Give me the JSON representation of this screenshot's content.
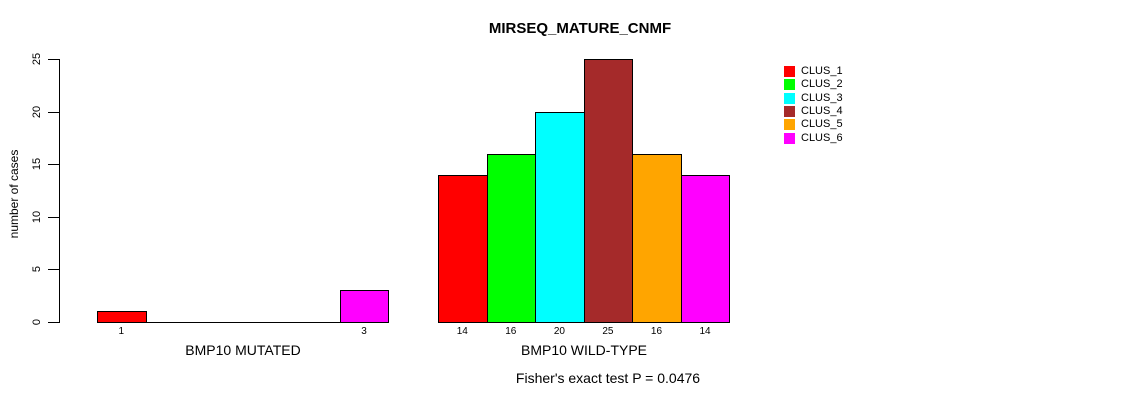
{
  "chart_data": {
    "type": "bar",
    "title": "MIRSEQ_MATURE_CNMF",
    "xlabel": "",
    "ylabel": "number of cases",
    "ylim": [
      0,
      25
    ],
    "yticks": [
      0,
      5,
      10,
      15,
      20,
      25
    ],
    "grid": false,
    "legend_position": "right-outside",
    "categories": [
      "BMP10 MUTATED",
      "BMP10 WILD-TYPE"
    ],
    "series": [
      {
        "name": "CLUS_1",
        "color": "#FF0000",
        "values": [
          1,
          14
        ]
      },
      {
        "name": "CLUS_2",
        "color": "#00FF00",
        "values": [
          0,
          16
        ]
      },
      {
        "name": "CLUS_3",
        "color": "#00FFFF",
        "values": [
          0,
          20
        ]
      },
      {
        "name": "CLUS_4",
        "color": "#A52A2A",
        "values": [
          0,
          25
        ]
      },
      {
        "name": "CLUS_5",
        "color": "#FFA500",
        "values": [
          0,
          16
        ]
      },
      {
        "name": "CLUS_6",
        "color": "#FF00FF",
        "values": [
          3,
          14
        ]
      }
    ],
    "bar_labels_rule": "value shown under each bar only when value > 0",
    "annotation": "Fisher's exact test P = 0.0476",
    "axis_color": "#000000",
    "background_color": "#FFFFFF"
  }
}
